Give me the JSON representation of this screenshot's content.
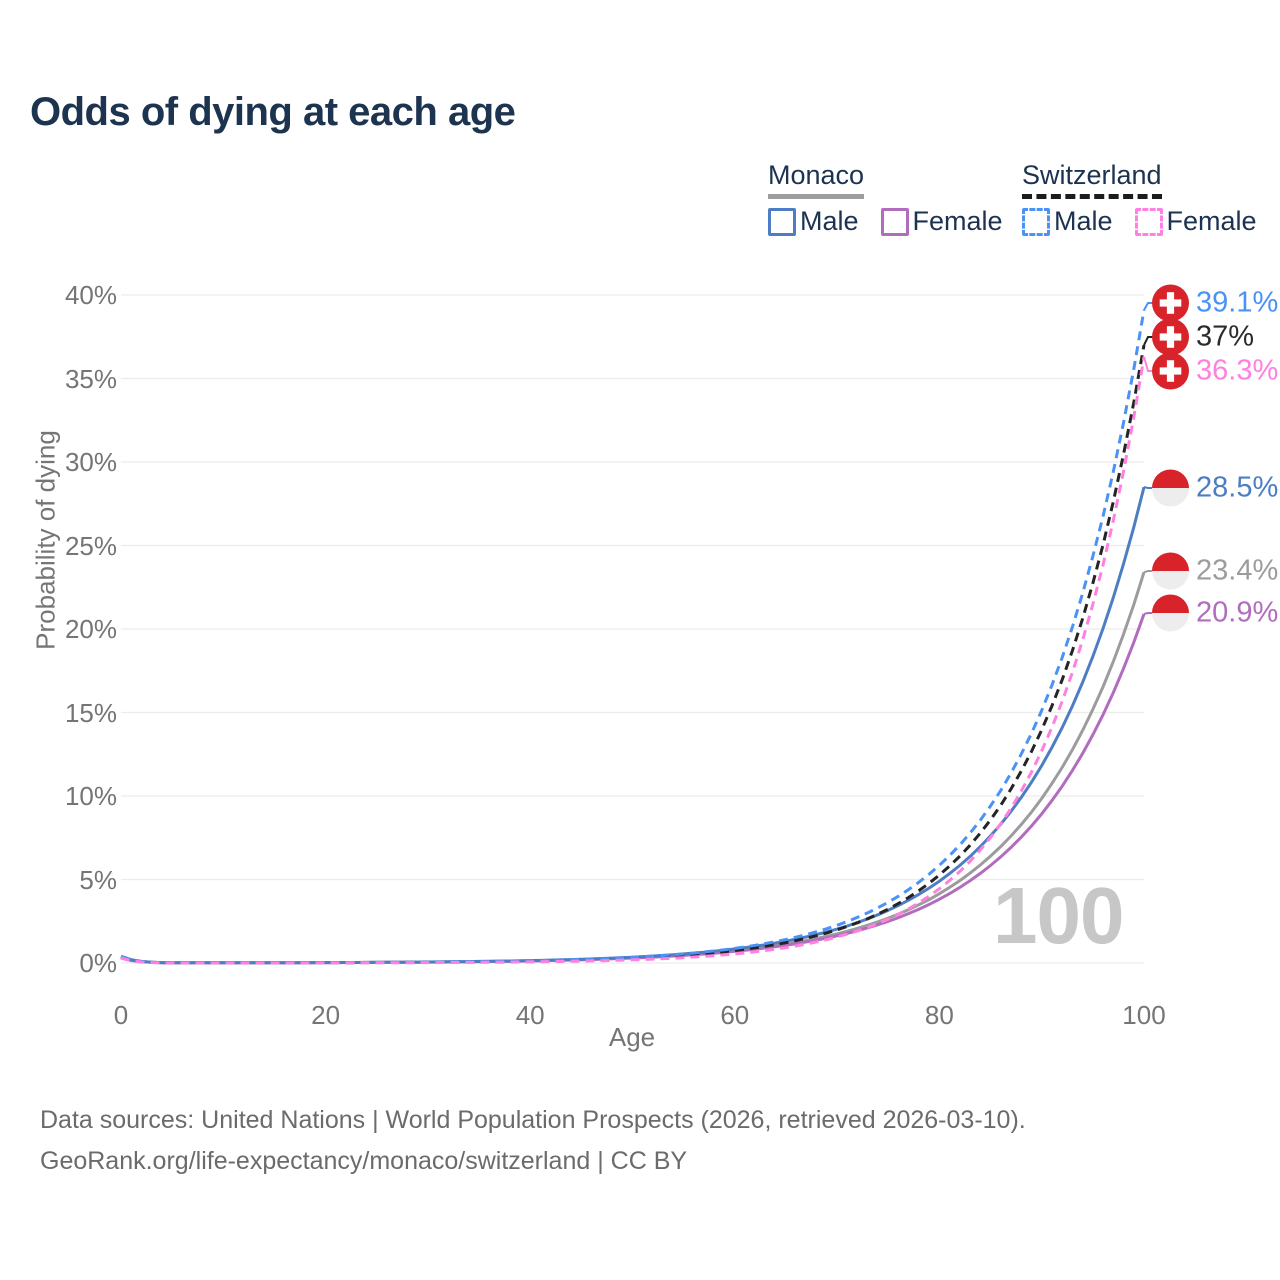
{
  "title": "Odds of dying at each age",
  "watermark": "100",
  "legend": {
    "groups": [
      {
        "name": "Monaco",
        "line_style": "solid",
        "underline_color": "#9e9e9e",
        "items": [
          {
            "label": "Male",
            "color": "#4d7ec3"
          },
          {
            "label": "Female",
            "color": "#b16cbe"
          }
        ]
      },
      {
        "name": "Switzerland",
        "line_style": "dashed",
        "underline_color": "#1c1c1c",
        "items": [
          {
            "label": "Male",
            "color": "#4b92f7"
          },
          {
            "label": "Female",
            "color": "#ff80e0"
          }
        ]
      }
    ]
  },
  "chart_data": {
    "type": "line",
    "title": "Odds of dying at each age",
    "xlabel": "Age",
    "ylabel": "Probability of dying",
    "xlim": [
      0,
      100
    ],
    "ylim": [
      0,
      40
    ],
    "grid": "horizontal",
    "x_ticks": [
      {
        "label": "0",
        "value": 0
      },
      {
        "label": "20",
        "value": 20
      },
      {
        "label": "40",
        "value": 40
      },
      {
        "label": "60",
        "value": 60
      },
      {
        "label": "80",
        "value": 80
      },
      {
        "label": "100",
        "value": 100
      }
    ],
    "y_ticks": [
      {
        "label": "0%",
        "value": 0
      },
      {
        "label": "5%",
        "value": 5
      },
      {
        "label": "10%",
        "value": 10
      },
      {
        "label": "15%",
        "value": 15
      },
      {
        "label": "20%",
        "value": 20
      },
      {
        "label": "25%",
        "value": 25
      },
      {
        "label": "30%",
        "value": 30
      },
      {
        "label": "35%",
        "value": 35
      },
      {
        "label": "40%",
        "value": 40
      }
    ],
    "ages": [
      0,
      5,
      10,
      15,
      20,
      25,
      30,
      35,
      40,
      45,
      50,
      55,
      60,
      65,
      70,
      75,
      80,
      85,
      90,
      95,
      100
    ],
    "series": [
      {
        "name": "Switzerland Male",
        "country": "Switzerland",
        "sex": "Male",
        "color": "#4b92f7",
        "dashed": true,
        "end_value": 39.1,
        "values": [
          0.4,
          0.009,
          0.008,
          0.012,
          0.02,
          0.032,
          0.05,
          0.081,
          0.131,
          0.21,
          0.338,
          0.544,
          0.875,
          1.41,
          2.26,
          3.64,
          5.85,
          9.4,
          15.12,
          24.34,
          39.1
        ]
      },
      {
        "name": "Switzerland Both sexes",
        "country": "Switzerland",
        "sex": "Both",
        "color": "#242424",
        "dashed": true,
        "end_value": 37,
        "values": [
          0.35,
          0.007,
          0.006,
          0.009,
          0.015,
          0.025,
          0.04,
          0.066,
          0.107,
          0.174,
          0.283,
          0.46,
          0.749,
          1.22,
          1.99,
          3.23,
          5.27,
          8.57,
          13.96,
          22.73,
          37.0
        ]
      },
      {
        "name": "Switzerland Female",
        "country": "Switzerland",
        "sex": "Female",
        "color": "#ff80e0",
        "dashed": true,
        "end_value": 36.3,
        "values": [
          0.3,
          0.005,
          0.003,
          0.005,
          0.008,
          0.014,
          0.023,
          0.039,
          0.067,
          0.113,
          0.191,
          0.322,
          0.545,
          0.92,
          1.56,
          2.63,
          4.45,
          7.51,
          12.7,
          21.47,
          36.3
        ]
      },
      {
        "name": "Monaco Male",
        "country": "Monaco",
        "sex": "Male",
        "color": "#4d7ec3",
        "dashed": false,
        "end_value": 28.5,
        "values": [
          0.4,
          0.011,
          0.01,
          0.016,
          0.025,
          0.039,
          0.06,
          0.094,
          0.145,
          0.225,
          0.35,
          0.543,
          0.843,
          1.31,
          2.03,
          3.16,
          4.9,
          7.61,
          11.82,
          18.35,
          28.5
        ]
      },
      {
        "name": "Monaco Both sexes",
        "country": "Monaco",
        "sex": "Both",
        "color": "#9c9c9c",
        "dashed": false,
        "end_value": 23.4,
        "values": [
          0.35,
          0.01,
          0.01,
          0.015,
          0.023,
          0.037,
          0.055,
          0.085,
          0.131,
          0.201,
          0.31,
          0.478,
          0.736,
          1.13,
          1.75,
          2.69,
          4.15,
          6.4,
          9.85,
          15.18,
          23.4
        ]
      },
      {
        "name": "Monaco Female",
        "country": "Monaco",
        "sex": "Female",
        "color": "#b16cbe",
        "dashed": false,
        "end_value": 20.9,
        "values": [
          0.3,
          0.01,
          0.01,
          0.015,
          0.023,
          0.036,
          0.054,
          0.083,
          0.127,
          0.195,
          0.298,
          0.456,
          0.698,
          1.07,
          1.63,
          2.5,
          3.82,
          5.84,
          8.93,
          13.66,
          20.9
        ]
      }
    ],
    "end_labels": [
      {
        "series": "Switzerland Male",
        "text": "39.1%",
        "color": "#4b92f7",
        "flag": "switzerland"
      },
      {
        "series": "Switzerland Both sexes",
        "text": "37%",
        "color": "#2b2b2b",
        "flag": "switzerland"
      },
      {
        "series": "Switzerland Female",
        "text": "36.3%",
        "color": "#ff80e0",
        "flag": "switzerland"
      },
      {
        "series": "Monaco Male",
        "text": "28.5%",
        "color": "#4d7ec3",
        "flag": "monaco"
      },
      {
        "series": "Monaco Both sexes",
        "text": "23.4%",
        "color": "#9c9c9c",
        "flag": "monaco"
      },
      {
        "series": "Monaco Female",
        "text": "20.9%",
        "color": "#b16cbe",
        "flag": "monaco"
      }
    ],
    "flag_colors": {
      "red": "#d8232a",
      "white": "#ffffff",
      "monaco_lower": "#ededed"
    }
  },
  "footer": {
    "line1": "Data sources: United Nations | World Population Prospects (2026, retrieved 2026-03-10).",
    "line2": "GeoRank.org/life-expectancy/monaco/switzerland | CC BY"
  }
}
